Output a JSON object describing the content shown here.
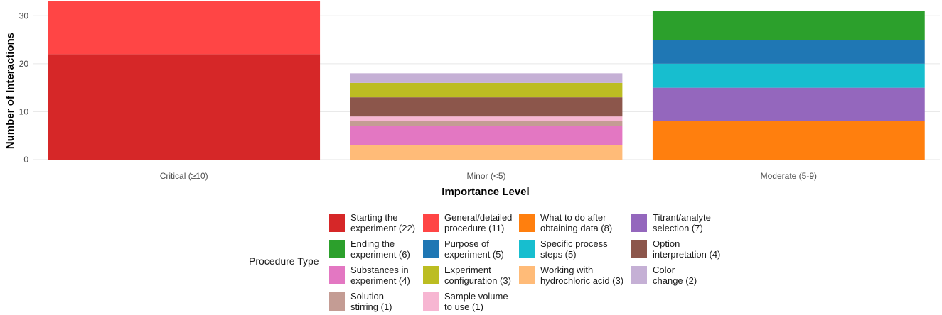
{
  "chart_data": {
    "type": "bar",
    "stacked": true,
    "title": "",
    "xlabel": "Importance Level",
    "ylabel": "Number of Interactions",
    "ylim": [
      0,
      33
    ],
    "yticks": [
      0,
      10,
      20,
      30
    ],
    "grid": true,
    "legend_title": "Procedure Type",
    "legend_position": "bottom",
    "categories": [
      "Critical (≥10)",
      "Minor (<5)",
      "Moderate (5-9)"
    ],
    "series": [
      {
        "name": "Starting the experiment (22)",
        "color": "#d62728",
        "values": [
          22,
          0,
          0
        ]
      },
      {
        "name": "General/detailed procedure (11)",
        "color": "#ff4545",
        "values": [
          11,
          0,
          0
        ]
      },
      {
        "name": "What to do after obtaining data (8)",
        "color": "#ff7f0e",
        "values": [
          0,
          0,
          8
        ]
      },
      {
        "name": "Titrant/analyte selection (7)",
        "color": "#9467bd",
        "values": [
          0,
          0,
          7
        ]
      },
      {
        "name": "Ending the experiment (6)",
        "color": "#2ca02c",
        "values": [
          0,
          0,
          6
        ]
      },
      {
        "name": "Purpose of experiment (5)",
        "color": "#1f77b4",
        "values": [
          0,
          0,
          5
        ]
      },
      {
        "name": "Specific process steps (5)",
        "color": "#17becf",
        "values": [
          0,
          0,
          5
        ]
      },
      {
        "name": "Option interpretation (4)",
        "color": "#8c564b",
        "values": [
          0,
          4,
          0
        ]
      },
      {
        "name": "Substances in experiment (4)",
        "color": "#e377c2",
        "values": [
          0,
          4,
          0
        ]
      },
      {
        "name": "Experiment configuration (3)",
        "color": "#bcbd22",
        "values": [
          0,
          3,
          0
        ]
      },
      {
        "name": "Working with hydrochloric acid (3)",
        "color": "#ffbb78",
        "values": [
          0,
          3,
          0
        ]
      },
      {
        "name": "Color change (2)",
        "color": "#c5b0d5",
        "values": [
          0,
          2,
          0
        ]
      },
      {
        "name": "Solution stirring (1)",
        "color": "#c49c94",
        "values": [
          0,
          1,
          0
        ]
      },
      {
        "name": "Sample volume to use (1)",
        "color": "#f7b6d2",
        "values": [
          0,
          1,
          0
        ]
      }
    ],
    "stack_order": [
      [
        "Starting the experiment (22)",
        "General/detailed procedure (11)"
      ],
      [
        "Working with hydrochloric acid (3)",
        "Substances in experiment (4)",
        "Solution stirring (1)",
        "Sample volume to use (1)",
        "Option interpretation (4)",
        "Experiment configuration (3)",
        "Color change (2)"
      ],
      [
        "What to do after obtaining data (8)",
        "Titrant/analyte selection (7)",
        "Specific process steps (5)",
        "Purpose of experiment (5)",
        "Ending the experiment (6)"
      ]
    ]
  },
  "legend": {
    "title": "Procedure Type",
    "items": [
      {
        "label": "Starting the\nexperiment (22)",
        "color": "#d62728"
      },
      {
        "label": "General/detailed\nprocedure (11)",
        "color": "#ff4545"
      },
      {
        "label": "What to do after\nobtaining data (8)",
        "color": "#ff7f0e"
      },
      {
        "label": "Titrant/analyte\nselection (7)",
        "color": "#9467bd"
      },
      {
        "label": "Ending the\nexperiment (6)",
        "color": "#2ca02c"
      },
      {
        "label": "Purpose of\nexperiment (5)",
        "color": "#1f77b4"
      },
      {
        "label": "Specific process\nsteps (5)",
        "color": "#17becf"
      },
      {
        "label": "Option\ninterpretation (4)",
        "color": "#8c564b"
      },
      {
        "label": "Substances in\nexperiment (4)",
        "color": "#e377c2"
      },
      {
        "label": "Experiment\nconfiguration (3)",
        "color": "#bcbd22"
      },
      {
        "label": "Working with\nhydrochloric acid (3)",
        "color": "#ffbb78"
      },
      {
        "label": "Color\nchange (2)",
        "color": "#c5b0d5"
      },
      {
        "label": "Solution\nstirring (1)",
        "color": "#c49c94"
      },
      {
        "label": "Sample volume\nto use (1)",
        "color": "#f7b6d2"
      }
    ]
  }
}
